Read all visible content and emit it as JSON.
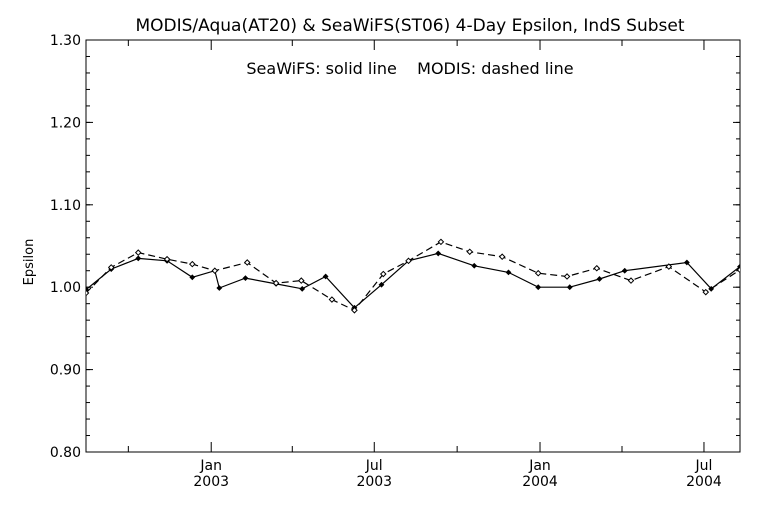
{
  "chart_data": {
    "type": "line",
    "title": "MODIS/Aqua(AT20) & SeaWiFS(ST06) 4-Day Epsilon, IndS Subset",
    "annotation": "SeaWiFS: solid line    MODIS: dashed line",
    "xlabel": "",
    "ylabel": "Epsilon",
    "ylim": [
      0.8,
      1.3
    ],
    "xlim": [
      "2002-08-15",
      "2004-08-10"
    ],
    "y_ticks": [
      "0.80",
      "0.90",
      "1.00",
      "1.10",
      "1.20",
      "1.30"
    ],
    "y_tick_values": [
      0.8,
      0.9,
      1.0,
      1.1,
      1.2,
      1.3
    ],
    "x_ticks": [
      {
        "month": "Jan",
        "year": "2003",
        "date": "2003-01-01"
      },
      {
        "month": "Jul",
        "year": "2003",
        "date": "2003-07-01"
      },
      {
        "month": "Jan",
        "year": "2004",
        "date": "2004-01-01"
      },
      {
        "month": "Jul",
        "year": "2004",
        "date": "2004-07-01"
      }
    ],
    "x_minor_ticks": [
      "2002-10-01",
      "2003-04-01",
      "2003-10-01",
      "2004-04-01"
    ],
    "grid": false,
    "series": [
      {
        "name": "SeaWiFS",
        "style": "solid",
        "color": "#000000",
        "x": [
          "2002-08-15",
          "2002-09-12",
          "2002-10-12",
          "2002-11-13",
          "2002-12-11",
          "2003-01-05",
          "2003-01-10",
          "2003-02-08",
          "2003-03-14",
          "2003-04-12",
          "2003-05-08",
          "2003-06-09",
          "2003-07-09",
          "2003-08-08",
          "2003-09-10",
          "2003-10-20",
          "2003-11-27",
          "2003-12-30",
          "2004-02-03",
          "2004-03-07",
          "2004-04-04",
          "2004-06-12",
          "2004-07-09",
          "2004-08-10"
        ],
        "y": [
          0.997,
          1.022,
          1.035,
          1.032,
          1.012,
          1.02,
          0.999,
          1.011,
          1.004,
          0.998,
          1.013,
          0.975,
          1.003,
          1.032,
          1.041,
          1.026,
          1.018,
          1.0,
          1.0,
          1.01,
          1.02,
          1.03,
          0.998,
          1.025
        ]
      },
      {
        "name": "MODIS",
        "style": "dashed",
        "color": "#000000",
        "x": [
          "2002-08-15",
          "2002-09-12",
          "2002-10-12",
          "2002-11-13",
          "2002-12-11",
          "2003-01-05",
          "2003-02-10",
          "2003-03-14",
          "2003-04-11",
          "2003-05-15",
          "2003-06-09",
          "2003-07-11",
          "2003-08-08",
          "2003-09-13",
          "2003-10-15",
          "2003-11-20",
          "2003-12-30",
          "2004-01-31",
          "2004-03-04",
          "2004-04-11",
          "2004-05-23",
          "2004-07-03",
          "2004-08-10"
        ],
        "y": [
          0.993,
          1.024,
          1.042,
          1.034,
          1.028,
          1.02,
          1.03,
          1.005,
          1.008,
          0.985,
          0.972,
          1.016,
          1.032,
          1.055,
          1.043,
          1.037,
          1.017,
          1.013,
          1.023,
          1.008,
          1.025,
          0.994,
          1.021
        ]
      }
    ]
  }
}
